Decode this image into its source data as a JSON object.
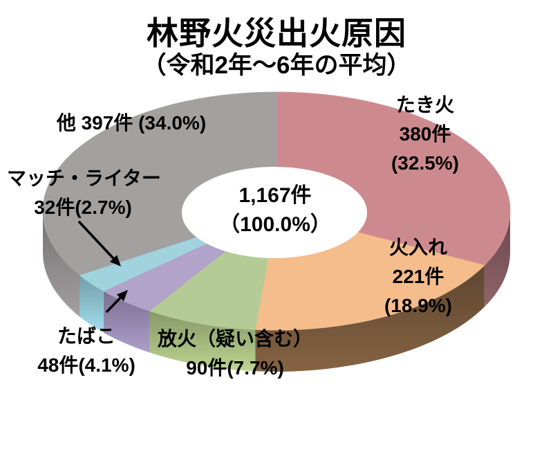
{
  "chart_data": {
    "type": "pie",
    "style": "3d-donut",
    "title": "林野火災出火原因",
    "subtitle": "（令和2年～6年の平均）",
    "background": "#ffffff",
    "legend_position": "none",
    "total_value": 1167,
    "center": {
      "value_label": "1,167件",
      "pct_label": "（100.0%）"
    },
    "segments": [
      {
        "id": "bonfire",
        "label": "たき火",
        "value": 380,
        "pct": 32.5,
        "color": "#cd8a8e",
        "side_color": "#7d565c",
        "lines": [
          "たき火",
          "380件",
          "(32.5%)"
        ]
      },
      {
        "id": "controlled-burn",
        "label": "火入れ",
        "value": 221,
        "pct": 18.9,
        "color": "#f5bc8c",
        "side_color": "#73553a",
        "lines": [
          "火入れ",
          "221件",
          "(18.9%)"
        ]
      },
      {
        "id": "arson",
        "label": "放火（疑い含む）",
        "value": 90,
        "pct": 7.7,
        "color": "#b5cb96",
        "side_color": "#a3b87d",
        "lines": [
          "放火（疑い含む）",
          "90件(7.7%)"
        ]
      },
      {
        "id": "cigarette",
        "label": "たばこ",
        "value": 48,
        "pct": 4.1,
        "color": "#b1a3c9",
        "side_color": "#9588af",
        "lines": [
          "たばこ",
          "48件(4.1%)"
        ]
      },
      {
        "id": "match-lighter",
        "label": "マッチ・ライター",
        "value": 32,
        "pct": 2.7,
        "color": "#a0d3dd",
        "side_color": "#8bc0cc",
        "lines": [
          "マッチ・ライター",
          "32件(2.7%)"
        ]
      },
      {
        "id": "other",
        "label": "他",
        "value": 397,
        "pct": 34.0,
        "color": "#a3a0a0",
        "side_color": "#8d898a",
        "lines": [
          "他 397件 (34.0%)"
        ]
      }
    ]
  }
}
